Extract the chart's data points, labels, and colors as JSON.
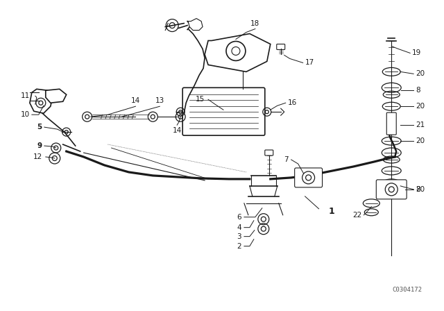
{
  "bg_color": "#ffffff",
  "line_color": "#1a1a1a",
  "fig_width": 6.4,
  "fig_height": 4.48,
  "dpi": 100,
  "catalog_number": "C0304172",
  "title_text": "",
  "label_fontsize": 7.5,
  "bold_label": "1"
}
